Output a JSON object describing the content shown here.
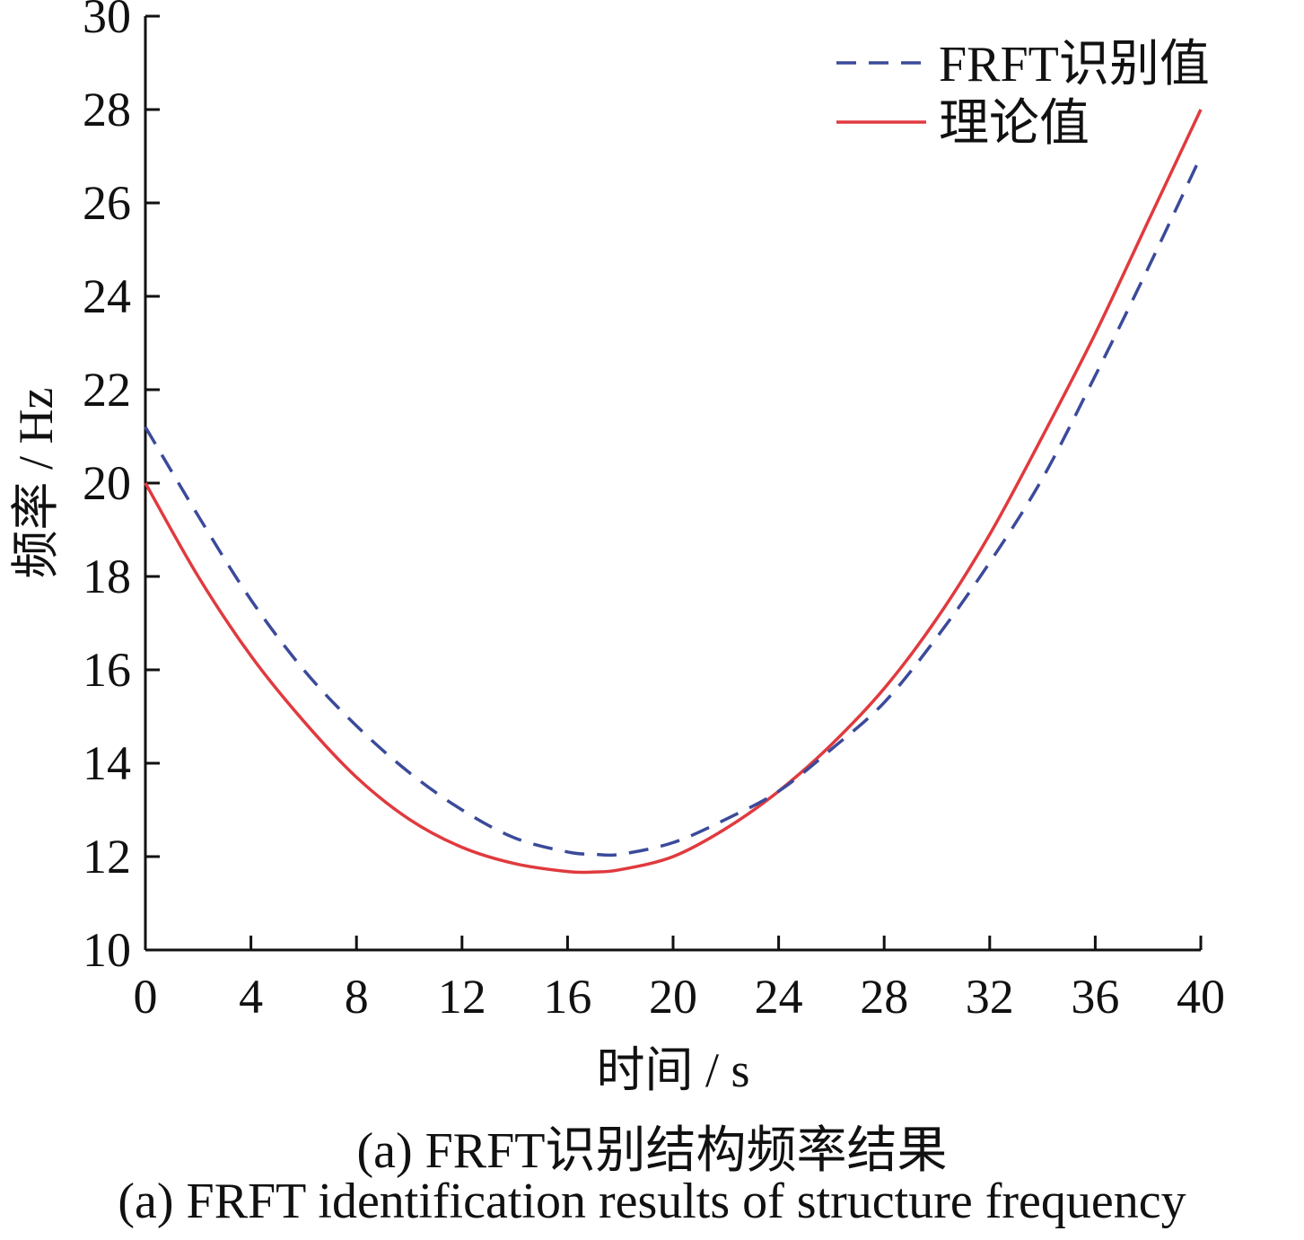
{
  "chart_data": {
    "type": "line",
    "xlabel": "时间 / s",
    "ylabel": "频率 / Hz",
    "xlim": [
      0,
      40
    ],
    "ylim": [
      10,
      30
    ],
    "xticks": [
      0,
      4,
      8,
      12,
      16,
      20,
      24,
      28,
      32,
      36,
      40
    ],
    "yticks": [
      10,
      12,
      14,
      16,
      18,
      20,
      22,
      24,
      26,
      28,
      30
    ],
    "grid": false,
    "legend_position": "top-right",
    "series": [
      {
        "name": "FRFT识别值",
        "style": "dashed",
        "color": "#3b4a9a",
        "x": [
          0,
          2,
          4,
          6,
          8,
          10,
          12,
          14,
          16,
          17,
          18,
          20,
          22,
          24,
          26,
          28,
          30,
          32,
          34,
          36,
          38,
          40
        ],
        "values": [
          21.2,
          19.3,
          17.5,
          16.0,
          14.8,
          13.8,
          13.0,
          12.4,
          12.1,
          12.05,
          12.05,
          12.3,
          12.8,
          13.4,
          14.3,
          15.3,
          16.7,
          18.3,
          20.1,
          22.3,
          24.6,
          27.0
        ]
      },
      {
        "name": "理论值",
        "style": "solid",
        "color": "#e03a3e",
        "x": [
          0,
          2,
          4,
          6,
          8,
          10,
          12,
          14,
          16,
          17,
          18,
          20,
          22,
          24,
          26,
          28,
          30,
          32,
          34,
          36,
          38,
          40
        ],
        "values": [
          20.0,
          18.0,
          16.3,
          14.9,
          13.7,
          12.8,
          12.2,
          11.85,
          11.68,
          11.67,
          11.72,
          12.0,
          12.6,
          13.4,
          14.4,
          15.6,
          17.1,
          18.9,
          21.0,
          23.2,
          25.6,
          28.0
        ]
      }
    ]
  },
  "captions": {
    "cn": "(a) FRFT识别结构频率结果",
    "en": "(a) FRFT identification results of structure frequency"
  }
}
